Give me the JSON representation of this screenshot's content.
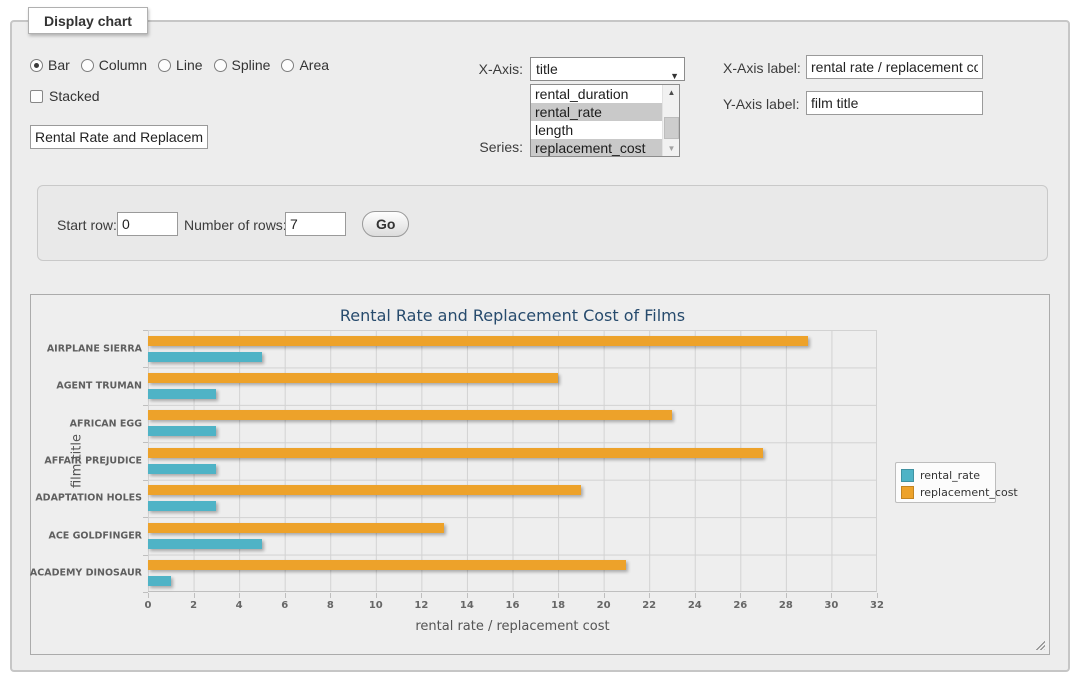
{
  "panel": {
    "title": "Display chart"
  },
  "form": {
    "chart_types": {
      "options": [
        {
          "label": "Bar",
          "checked": true
        },
        {
          "label": "Column",
          "checked": false
        },
        {
          "label": "Line",
          "checked": false
        },
        {
          "label": "Spline",
          "checked": false
        },
        {
          "label": "Area",
          "checked": false
        }
      ]
    },
    "stacked": {
      "label": "Stacked",
      "checked": false
    },
    "chart_title_input": {
      "value": "Rental Rate and Replacement Cost of Films"
    },
    "x_axis": {
      "label": "X-Axis:",
      "selected": "title"
    },
    "series_select": {
      "label": "Series:",
      "options": [
        {
          "label": "rental_duration",
          "selected": false
        },
        {
          "label": "rental_rate",
          "selected": true
        },
        {
          "label": "length",
          "selected": false
        },
        {
          "label": "replacement_cost",
          "selected": true
        }
      ]
    },
    "x_axis_label": {
      "label": "X-Axis label:",
      "value": "rental rate / replacement cost"
    },
    "y_axis_label": {
      "label": "Y-Axis label:",
      "value": "film title"
    },
    "start_row": {
      "label": "Start row:",
      "value": "0"
    },
    "number_of_rows": {
      "label": "Number of rows:",
      "value": "7"
    },
    "go_button": {
      "label": "Go"
    }
  },
  "chart_data": {
    "type": "bar",
    "title": "Rental Rate and Replacement Cost of Films",
    "categories": [
      "AIRPLANE SIERRA",
      "AGENT TRUMAN",
      "AFRICAN EGG",
      "AFFAIR PREJUDICE",
      "ADAPTATION HOLES",
      "ACE GOLDFINGER",
      "ACADEMY DINOSAUR"
    ],
    "series": [
      {
        "name": "rental_rate",
        "color": "#4FB3C6",
        "values": [
          4.99,
          2.99,
          2.99,
          2.99,
          2.99,
          4.99,
          0.99
        ]
      },
      {
        "name": "replacement_cost",
        "color": "#EDA22A",
        "values": [
          28.99,
          17.99,
          22.99,
          26.99,
          18.99,
          12.99,
          20.99
        ]
      }
    ],
    "xlabel": "rental rate / replacement cost",
    "ylabel": "film title",
    "xlim": [
      0,
      32
    ],
    "x_tick_step": 2,
    "grid": true,
    "legend_position": "right",
    "bar_order_note": "replacement_cost bar drawn above rental_rate bar in each category group"
  }
}
